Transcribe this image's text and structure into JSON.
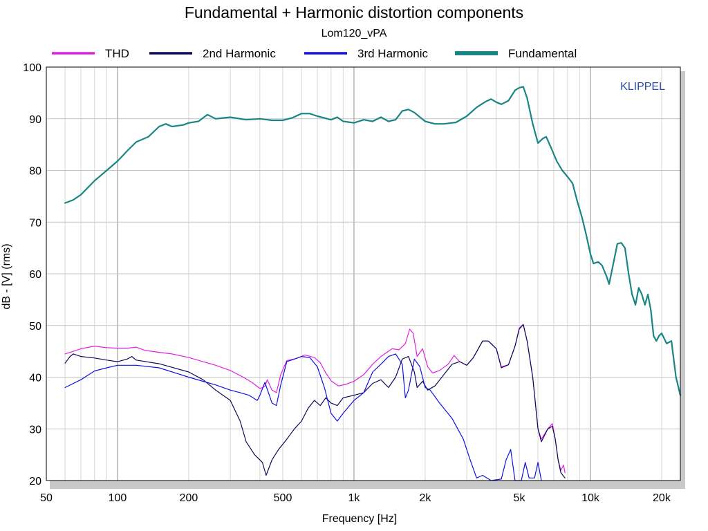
{
  "chart_data": {
    "type": "line",
    "title": "Fundamental + Harmonic distortion components",
    "subtitle": "Lom120_vPA",
    "xlabel": "Frequency [Hz]",
    "ylabel": "dB - [V]  (rms)",
    "watermark": "KLIPPEL",
    "x_scale": "log",
    "xlim": [
      50,
      24000
    ],
    "ylim": [
      20,
      100
    ],
    "grid": true,
    "legend_position": "top",
    "x_ticks": [
      {
        "value": 50,
        "label": "50"
      },
      {
        "value": 100,
        "label": "100"
      },
      {
        "value": 200,
        "label": "200"
      },
      {
        "value": 500,
        "label": "500"
      },
      {
        "value": 1000,
        "label": "1k"
      },
      {
        "value": 2000,
        "label": "2k"
      },
      {
        "value": 5000,
        "label": "5k"
      },
      {
        "value": 10000,
        "label": "10k"
      },
      {
        "value": 20000,
        "label": "20k"
      }
    ],
    "y_ticks": [
      {
        "value": 20,
        "label": "20"
      },
      {
        "value": 30,
        "label": "30"
      },
      {
        "value": 40,
        "label": "40"
      },
      {
        "value": 50,
        "label": "50"
      },
      {
        "value": 60,
        "label": "60"
      },
      {
        "value": 70,
        "label": "70"
      },
      {
        "value": 80,
        "label": "80"
      },
      {
        "value": 90,
        "label": "90"
      },
      {
        "value": 100,
        "label": "100"
      }
    ],
    "series": [
      {
        "name": "THD",
        "color": "#e020e0",
        "points": [
          [
            60,
            44.5
          ],
          [
            65,
            45
          ],
          [
            70,
            45.5
          ],
          [
            80,
            46
          ],
          [
            90,
            45.7
          ],
          [
            100,
            45.6
          ],
          [
            110,
            45.6
          ],
          [
            120,
            45.8
          ],
          [
            130,
            45.2
          ],
          [
            150,
            44.8
          ],
          [
            170,
            44.5
          ],
          [
            200,
            43.8
          ],
          [
            230,
            43
          ],
          [
            260,
            42.3
          ],
          [
            300,
            41.3
          ],
          [
            340,
            40
          ],
          [
            370,
            39
          ],
          [
            400,
            37.8
          ],
          [
            420,
            38.2
          ],
          [
            430,
            39.5
          ],
          [
            450,
            37.5
          ],
          [
            470,
            37
          ],
          [
            490,
            40.5
          ],
          [
            520,
            43.2
          ],
          [
            570,
            43.6
          ],
          [
            620,
            44.3
          ],
          [
            680,
            43.8
          ],
          [
            720,
            42.8
          ],
          [
            760,
            40.8
          ],
          [
            800,
            39.3
          ],
          [
            860,
            38.3
          ],
          [
            920,
            38.6
          ],
          [
            1000,
            39.2
          ],
          [
            1100,
            40.5
          ],
          [
            1200,
            42.5
          ],
          [
            1300,
            44
          ],
          [
            1450,
            45.5
          ],
          [
            1550,
            45.3
          ],
          [
            1650,
            46.5
          ],
          [
            1720,
            49.3
          ],
          [
            1780,
            48.5
          ],
          [
            1850,
            44
          ],
          [
            1950,
            45.5
          ],
          [
            2050,
            42
          ],
          [
            2150,
            40.8
          ],
          [
            2300,
            41.3
          ],
          [
            2500,
            42.5
          ],
          [
            2650,
            44.2
          ],
          [
            2800,
            43
          ],
          [
            3000,
            42.3
          ],
          [
            3200,
            43.8
          ],
          [
            3500,
            47
          ],
          [
            3700,
            47
          ],
          [
            4000,
            45.5
          ],
          [
            4200,
            42
          ],
          [
            4500,
            42.4
          ],
          [
            4800,
            46
          ],
          [
            5000,
            49.5
          ],
          [
            5200,
            50.2
          ],
          [
            5400,
            47
          ],
          [
            5700,
            40
          ],
          [
            6000,
            30
          ],
          [
            6200,
            28
          ],
          [
            6600,
            30
          ],
          [
            6900,
            31
          ],
          [
            7100,
            28
          ],
          [
            7300,
            24
          ],
          [
            7500,
            22
          ],
          [
            7700,
            23
          ],
          [
            7800,
            21.5
          ]
        ]
      },
      {
        "name": "2nd Harmonic",
        "color": "#0a0a5a",
        "points": [
          [
            60,
            42.7
          ],
          [
            63,
            44
          ],
          [
            65,
            44.5
          ],
          [
            70,
            44
          ],
          [
            80,
            43.7
          ],
          [
            90,
            43.3
          ],
          [
            100,
            43
          ],
          [
            110,
            43.5
          ],
          [
            115,
            44
          ],
          [
            120,
            43.3
          ],
          [
            150,
            42.6
          ],
          [
            200,
            41
          ],
          [
            230,
            39.5
          ],
          [
            260,
            37.5
          ],
          [
            300,
            35.5
          ],
          [
            330,
            31.5
          ],
          [
            350,
            27.5
          ],
          [
            380,
            25
          ],
          [
            410,
            23.5
          ],
          [
            425,
            21
          ],
          [
            450,
            24
          ],
          [
            480,
            26
          ],
          [
            520,
            28
          ],
          [
            560,
            30
          ],
          [
            600,
            31.5
          ],
          [
            640,
            34
          ],
          [
            680,
            35.5
          ],
          [
            720,
            34.5
          ],
          [
            760,
            36
          ],
          [
            800,
            35
          ],
          [
            850,
            34.5
          ],
          [
            900,
            36
          ],
          [
            1000,
            36.5
          ],
          [
            1100,
            37
          ],
          [
            1200,
            38.8
          ],
          [
            1300,
            39.5
          ],
          [
            1400,
            38
          ],
          [
            1500,
            40
          ],
          [
            1600,
            43.5
          ],
          [
            1700,
            44
          ],
          [
            1800,
            41
          ],
          [
            1850,
            38
          ],
          [
            1950,
            39.2
          ],
          [
            2050,
            37.5
          ],
          [
            2200,
            38.3
          ],
          [
            2400,
            40.5
          ],
          [
            2600,
            42.5
          ],
          [
            2800,
            43
          ],
          [
            3000,
            42.3
          ],
          [
            3200,
            43.8
          ],
          [
            3500,
            47
          ],
          [
            3700,
            47
          ],
          [
            4000,
            45.5
          ],
          [
            4200,
            41.8
          ],
          [
            4500,
            42.4
          ],
          [
            4800,
            46
          ],
          [
            5000,
            49.3
          ],
          [
            5200,
            50.2
          ],
          [
            5400,
            47
          ],
          [
            5700,
            40
          ],
          [
            6000,
            30
          ],
          [
            6200,
            27.5
          ],
          [
            6600,
            30
          ],
          [
            6900,
            30.5
          ],
          [
            7100,
            28
          ],
          [
            7300,
            24
          ],
          [
            7500,
            21.5
          ],
          [
            7800,
            20.5
          ]
        ]
      },
      {
        "name": "3rd Harmonic",
        "color": "#1010e0",
        "points": [
          [
            60,
            38
          ],
          [
            70,
            39.5
          ],
          [
            80,
            41.2
          ],
          [
            90,
            41.8
          ],
          [
            100,
            42.3
          ],
          [
            120,
            42.3
          ],
          [
            150,
            41.8
          ],
          [
            200,
            40
          ],
          [
            230,
            39.2
          ],
          [
            260,
            38.5
          ],
          [
            300,
            37.5
          ],
          [
            330,
            37
          ],
          [
            360,
            36.5
          ],
          [
            390,
            35.5
          ],
          [
            400,
            36.5
          ],
          [
            420,
            39
          ],
          [
            450,
            35
          ],
          [
            470,
            34.5
          ],
          [
            490,
            38.5
          ],
          [
            520,
            43
          ],
          [
            560,
            43.5
          ],
          [
            600,
            44
          ],
          [
            650,
            43.8
          ],
          [
            700,
            42
          ],
          [
            750,
            38
          ],
          [
            800,
            33
          ],
          [
            850,
            31.5
          ],
          [
            900,
            33
          ],
          [
            1000,
            35.5
          ],
          [
            1100,
            37
          ],
          [
            1200,
            41
          ],
          [
            1300,
            42.5
          ],
          [
            1400,
            44
          ],
          [
            1500,
            44.5
          ],
          [
            1600,
            42.5
          ],
          [
            1650,
            36
          ],
          [
            1700,
            37.5
          ],
          [
            1800,
            43.5
          ],
          [
            1900,
            42
          ],
          [
            2000,
            38
          ],
          [
            2100,
            37.5
          ],
          [
            2300,
            35
          ],
          [
            2600,
            32
          ],
          [
            2900,
            28
          ],
          [
            3100,
            24
          ],
          [
            3300,
            20.5
          ],
          [
            3500,
            21
          ],
          [
            3800,
            20
          ],
          [
            4200,
            20.3
          ],
          [
            4400,
            24
          ],
          [
            4600,
            26
          ],
          [
            4800,
            20
          ],
          [
            5100,
            20
          ],
          [
            5300,
            23.5
          ],
          [
            5500,
            20.5
          ],
          [
            5800,
            20.5
          ],
          [
            6000,
            23.5
          ],
          [
            6200,
            20
          ]
        ]
      },
      {
        "name": "Fundamental",
        "color": "#1a8585",
        "points": [
          [
            60,
            73.7
          ],
          [
            65,
            74.3
          ],
          [
            70,
            75.3
          ],
          [
            80,
            78
          ],
          [
            90,
            80
          ],
          [
            100,
            81.8
          ],
          [
            110,
            83.8
          ],
          [
            120,
            85.5
          ],
          [
            135,
            86.5
          ],
          [
            150,
            88.5
          ],
          [
            160,
            89
          ],
          [
            170,
            88.5
          ],
          [
            190,
            88.8
          ],
          [
            200,
            89.2
          ],
          [
            220,
            89.5
          ],
          [
            240,
            90.8
          ],
          [
            260,
            90
          ],
          [
            300,
            90.3
          ],
          [
            350,
            89.8
          ],
          [
            400,
            90
          ],
          [
            450,
            89.7
          ],
          [
            500,
            89.7
          ],
          [
            550,
            90.2
          ],
          [
            600,
            91
          ],
          [
            650,
            91
          ],
          [
            700,
            90.5
          ],
          [
            800,
            89.8
          ],
          [
            850,
            90.3
          ],
          [
            900,
            89.5
          ],
          [
            1000,
            89.2
          ],
          [
            1100,
            89.8
          ],
          [
            1200,
            89.5
          ],
          [
            1300,
            90.3
          ],
          [
            1400,
            89.5
          ],
          [
            1500,
            89.8
          ],
          [
            1600,
            91.5
          ],
          [
            1700,
            91.8
          ],
          [
            1800,
            91.2
          ],
          [
            2000,
            89.5
          ],
          [
            2200,
            89
          ],
          [
            2400,
            89
          ],
          [
            2700,
            89.3
          ],
          [
            3000,
            90.5
          ],
          [
            3300,
            92.2
          ],
          [
            3600,
            93.3
          ],
          [
            3800,
            93.8
          ],
          [
            4000,
            93.2
          ],
          [
            4200,
            92.8
          ],
          [
            4500,
            93.5
          ],
          [
            4800,
            95.5
          ],
          [
            5000,
            96
          ],
          [
            5200,
            96.2
          ],
          [
            5400,
            94
          ],
          [
            5700,
            89
          ],
          [
            6000,
            85.3
          ],
          [
            6300,
            86.2
          ],
          [
            6500,
            86.5
          ],
          [
            6800,
            84.5
          ],
          [
            7200,
            81.8
          ],
          [
            7600,
            80
          ],
          [
            8000,
            78.8
          ],
          [
            8400,
            77.5
          ],
          [
            8800,
            74
          ],
          [
            9200,
            71
          ],
          [
            9600,
            67.5
          ],
          [
            10000,
            63.8
          ],
          [
            10300,
            62
          ],
          [
            10800,
            62.3
          ],
          [
            11200,
            61.6
          ],
          [
            11700,
            59.5
          ],
          [
            12000,
            58
          ],
          [
            12500,
            62
          ],
          [
            13000,
            65.8
          ],
          [
            13500,
            66
          ],
          [
            14000,
            65
          ],
          [
            14500,
            60
          ],
          [
            15000,
            56
          ],
          [
            15500,
            54
          ],
          [
            16000,
            57.3
          ],
          [
            16500,
            56
          ],
          [
            17000,
            54
          ],
          [
            17500,
            56
          ],
          [
            18000,
            53
          ],
          [
            18500,
            48
          ],
          [
            19000,
            47
          ],
          [
            19500,
            48
          ],
          [
            20000,
            48.5
          ],
          [
            21000,
            46.5
          ],
          [
            22000,
            47
          ],
          [
            23000,
            40
          ],
          [
            24000,
            36.5
          ]
        ]
      }
    ]
  }
}
